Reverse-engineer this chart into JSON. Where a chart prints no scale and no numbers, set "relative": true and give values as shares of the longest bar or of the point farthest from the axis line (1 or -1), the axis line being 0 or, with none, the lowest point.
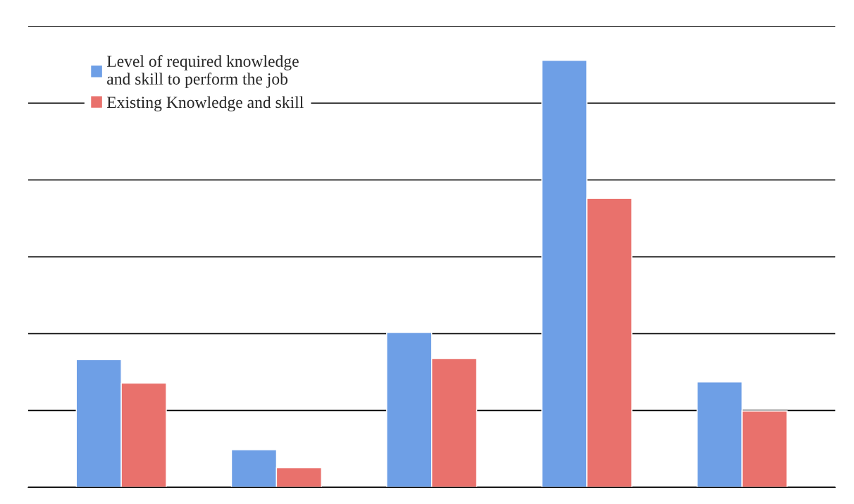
{
  "chart_data": {
    "type": "bar",
    "relative": true,
    "categories": [
      null,
      null,
      null,
      null,
      null
    ],
    "series": [
      {
        "name": "Level of required knowledge\nand skill to perform the job",
        "color": "#6e9fe6",
        "values": [
          0.299,
          0.088,
          0.363,
          1,
          0.247
        ]
      },
      {
        "name": "Existing Knowledge and skill",
        "color": "#e9716c",
        "values": [
          0.244,
          0.046,
          0.302,
          0.677,
          0.179
        ]
      }
    ],
    "grid": "y",
    "legend": "top left"
  }
}
